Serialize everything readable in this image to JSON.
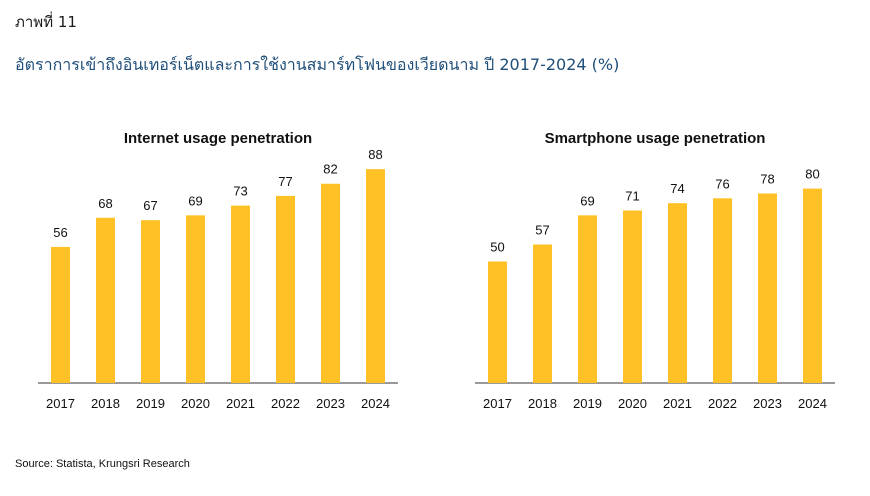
{
  "figure_label": "ภาพที่ 11",
  "figure_title": "อัตราการเข้าถึงอินเทอร์เน็ตและการใช้งานสมาร์ทโฟนของเวียดนาม ปี 2017-2024 (%)",
  "source": "Source: Statista, Krungsri Research",
  "colors": {
    "bar": "#FFC125",
    "axis": "#333333",
    "title": "#1F4E79"
  },
  "chart_data": [
    {
      "type": "bar",
      "title": "Internet usage penetration",
      "categories": [
        "2017",
        "2018",
        "2019",
        "2020",
        "2021",
        "2022",
        "2023",
        "2024"
      ],
      "values": [
        56,
        68,
        67,
        69,
        73,
        77,
        82,
        88
      ],
      "xlabel": "",
      "ylabel": "",
      "ylim": [
        0,
        100
      ],
      "grid": false,
      "legend": "none"
    },
    {
      "type": "bar",
      "title": "Smartphone usage penetration",
      "categories": [
        "2017",
        "2018",
        "2019",
        "2020",
        "2021",
        "2022",
        "2023",
        "2024"
      ],
      "values": [
        50,
        57,
        69,
        71,
        74,
        76,
        78,
        80
      ],
      "xlabel": "",
      "ylabel": "",
      "ylim": [
        0,
        100
      ],
      "grid": false,
      "legend": "none"
    }
  ]
}
